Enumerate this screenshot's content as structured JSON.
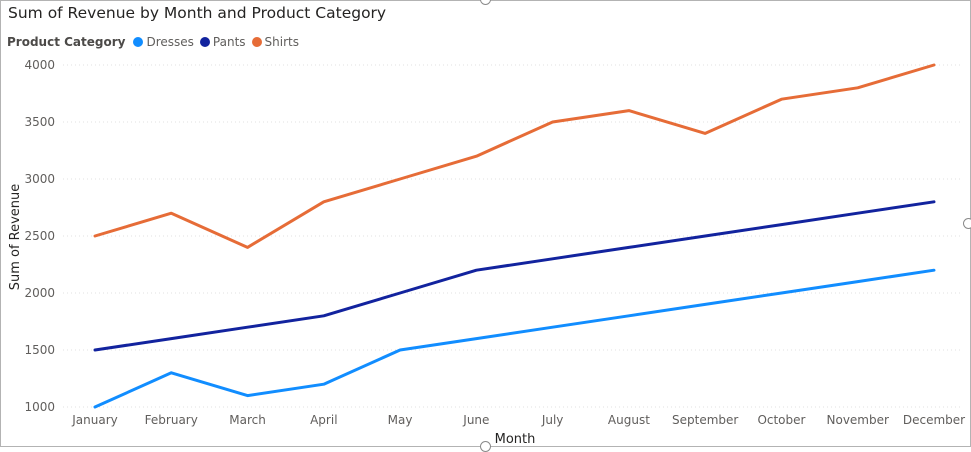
{
  "chart_data": {
    "type": "line",
    "title": "Sum of Revenue by Month and Product Category",
    "legend_title": "Product Category",
    "legend_position": "top-left",
    "xlabel": "Month",
    "ylabel": "Sum of Revenue",
    "categories": [
      "January",
      "February",
      "March",
      "April",
      "May",
      "June",
      "July",
      "August",
      "September",
      "October",
      "November",
      "December"
    ],
    "y_ticks": [
      1000,
      1500,
      2000,
      2500,
      3000,
      3500,
      4000
    ],
    "ylim": [
      1000,
      4000
    ],
    "grid": true,
    "series": [
      {
        "name": "Dresses",
        "color": "#118DFF",
        "values": [
          1000,
          1300,
          1100,
          1200,
          1500,
          1600,
          1700,
          1800,
          1900,
          2000,
          2100,
          2200
        ]
      },
      {
        "name": "Pants",
        "color": "#12239E",
        "values": [
          1500,
          1600,
          1700,
          1800,
          2000,
          2200,
          2300,
          2400,
          2500,
          2600,
          2700,
          2800
        ]
      },
      {
        "name": "Shirts",
        "color": "#E66C37",
        "values": [
          2500,
          2700,
          2400,
          2800,
          3000,
          3200,
          3500,
          3600,
          3400,
          3700,
          3800,
          4000
        ]
      }
    ]
  }
}
